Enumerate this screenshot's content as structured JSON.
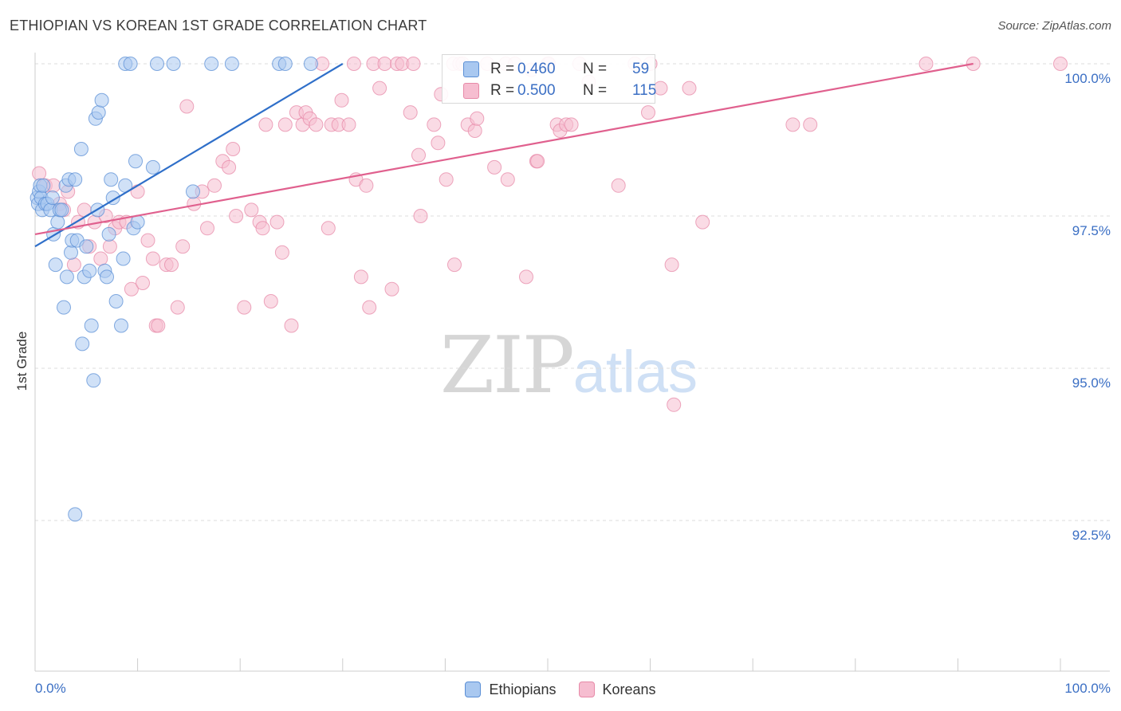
{
  "title": "ETHIOPIAN VS KOREAN 1ST GRADE CORRELATION CHART",
  "source": "Source: ZipAtlas.com",
  "watermark": {
    "part1": "ZIP",
    "part2": "atlas"
  },
  "colors": {
    "blue_fill": "#a9c8f0",
    "blue_stroke": "#5b8fd6",
    "blue_line": "#2f6fc9",
    "pink_fill": "#f6bdd0",
    "pink_stroke": "#e78aa8",
    "pink_line": "#e0608e",
    "axis_text": "#3b6fc4",
    "grid": "#dcdcdc"
  },
  "stats": [
    {
      "r_label": "R =",
      "r_value": "0.460",
      "n_label": "N =",
      "n_value": "59"
    },
    {
      "r_label": "R =",
      "r_value": "0.500",
      "n_label": "N =",
      "n_value": "115"
    }
  ],
  "legend": [
    "Ethiopians",
    "Koreans"
  ],
  "chart_data": {
    "type": "scatter",
    "title": "ETHIOPIAN VS KOREAN 1ST GRADE CORRELATION CHART",
    "xlabel": "",
    "ylabel": "1st Grade",
    "xlim": [
      0,
      100
    ],
    "ylim": [
      90.0,
      100.4
    ],
    "x_tick_labels": [
      "0.0%",
      "100.0%"
    ],
    "y_ticks": [
      92.5,
      95.0,
      97.5,
      100.0
    ],
    "y_tick_labels": [
      "92.5%",
      "95.0%",
      "97.5%",
      "100.0%"
    ],
    "grid": true,
    "series": [
      {
        "name": "Ethiopians",
        "r": 0.46,
        "n": 59,
        "trend": {
          "x": [
            0,
            30
          ],
          "y": [
            97.0,
            100.0
          ]
        },
        "points": [
          [
            0.2,
            97.8
          ],
          [
            0.3,
            97.7
          ],
          [
            0.4,
            97.9
          ],
          [
            0.5,
            98.0
          ],
          [
            0.6,
            97.8
          ],
          [
            0.7,
            97.6
          ],
          [
            0.8,
            98.0
          ],
          [
            1.0,
            97.7
          ],
          [
            1.2,
            97.7
          ],
          [
            1.5,
            97.6
          ],
          [
            1.7,
            97.8
          ],
          [
            1.8,
            97.2
          ],
          [
            2.0,
            96.7
          ],
          [
            2.2,
            97.4
          ],
          [
            2.4,
            97.6
          ],
          [
            2.6,
            97.6
          ],
          [
            2.8,
            96.0
          ],
          [
            3.0,
            98.0
          ],
          [
            3.1,
            96.5
          ],
          [
            3.3,
            98.1
          ],
          [
            3.5,
            96.9
          ],
          [
            3.6,
            97.1
          ],
          [
            3.9,
            98.1
          ],
          [
            4.1,
            97.1
          ],
          [
            4.5,
            98.6
          ],
          [
            4.6,
            95.4
          ],
          [
            4.8,
            96.5
          ],
          [
            5.0,
            97.0
          ],
          [
            5.3,
            96.6
          ],
          [
            5.5,
            95.7
          ],
          [
            5.7,
            94.8
          ],
          [
            5.9,
            99.1
          ],
          [
            6.1,
            97.6
          ],
          [
            6.2,
            99.2
          ],
          [
            6.5,
            99.4
          ],
          [
            6.8,
            96.6
          ],
          [
            7.0,
            96.5
          ],
          [
            7.2,
            97.2
          ],
          [
            7.4,
            98.1
          ],
          [
            7.6,
            97.8
          ],
          [
            7.9,
            96.1
          ],
          [
            8.4,
            95.7
          ],
          [
            8.6,
            96.8
          ],
          [
            8.8,
            98.0
          ],
          [
            8.8,
            100.0
          ],
          [
            9.3,
            100.0
          ],
          [
            9.6,
            97.3
          ],
          [
            9.8,
            98.4
          ],
          [
            10.0,
            97.4
          ],
          [
            11.5,
            98.3
          ],
          [
            11.9,
            100.0
          ],
          [
            13.5,
            100.0
          ],
          [
            15.4,
            97.9
          ],
          [
            17.2,
            100.0
          ],
          [
            19.2,
            100.0
          ],
          [
            23.8,
            100.0
          ],
          [
            24.4,
            100.0
          ],
          [
            26.9,
            100.0
          ],
          [
            3.9,
            92.6
          ]
        ]
      },
      {
        "name": "Koreans",
        "r": 0.5,
        "n": 115,
        "trend": {
          "x": [
            0,
            91.5
          ],
          "y": [
            97.2,
            100.0
          ]
        },
        "points": [
          [
            0.4,
            98.2
          ],
          [
            1.0,
            98.0
          ],
          [
            1.8,
            98.0
          ],
          [
            2.4,
            97.7
          ],
          [
            2.8,
            97.6
          ],
          [
            3.2,
            97.9
          ],
          [
            3.8,
            96.7
          ],
          [
            4.2,
            97.4
          ],
          [
            4.8,
            97.6
          ],
          [
            5.3,
            97.0
          ],
          [
            5.8,
            97.4
          ],
          [
            6.4,
            96.8
          ],
          [
            6.9,
            97.5
          ],
          [
            7.3,
            97.0
          ],
          [
            7.8,
            97.3
          ],
          [
            8.2,
            97.4
          ],
          [
            8.9,
            97.4
          ],
          [
            9.4,
            96.3
          ],
          [
            10.0,
            97.9
          ],
          [
            10.5,
            96.4
          ],
          [
            11.0,
            97.1
          ],
          [
            11.5,
            96.8
          ],
          [
            11.8,
            95.7
          ],
          [
            12.0,
            95.7
          ],
          [
            12.8,
            96.7
          ],
          [
            13.3,
            96.7
          ],
          [
            13.9,
            96.0
          ],
          [
            14.4,
            97.0
          ],
          [
            14.8,
            99.3
          ],
          [
            15.5,
            97.7
          ],
          [
            16.3,
            97.9
          ],
          [
            16.8,
            97.3
          ],
          [
            17.5,
            98.0
          ],
          [
            18.3,
            98.4
          ],
          [
            18.9,
            98.3
          ],
          [
            19.3,
            98.6
          ],
          [
            19.6,
            97.5
          ],
          [
            20.4,
            96.0
          ],
          [
            21.1,
            97.6
          ],
          [
            21.9,
            97.4
          ],
          [
            22.2,
            97.3
          ],
          [
            22.5,
            99.0
          ],
          [
            23.0,
            96.1
          ],
          [
            23.6,
            97.4
          ],
          [
            24.1,
            96.9
          ],
          [
            24.4,
            99.0
          ],
          [
            25.0,
            95.7
          ],
          [
            25.5,
            99.2
          ],
          [
            26.1,
            99.0
          ],
          [
            26.4,
            99.2
          ],
          [
            26.8,
            99.1
          ],
          [
            27.4,
            99.0
          ],
          [
            28.0,
            100.0
          ],
          [
            28.6,
            97.3
          ],
          [
            28.9,
            99.0
          ],
          [
            29.6,
            99.0
          ],
          [
            29.9,
            99.4
          ],
          [
            30.6,
            99.0
          ],
          [
            31.1,
            100.0
          ],
          [
            31.3,
            98.1
          ],
          [
            31.8,
            96.5
          ],
          [
            32.3,
            98.0
          ],
          [
            32.6,
            96.0
          ],
          [
            33.0,
            100.0
          ],
          [
            33.6,
            99.6
          ],
          [
            34.1,
            100.0
          ],
          [
            34.8,
            96.3
          ],
          [
            35.3,
            100.0
          ],
          [
            35.8,
            100.0
          ],
          [
            36.6,
            99.2
          ],
          [
            36.9,
            100.0
          ],
          [
            37.4,
            98.5
          ],
          [
            37.6,
            97.5
          ],
          [
            38.9,
            99.0
          ],
          [
            39.3,
            98.7
          ],
          [
            39.6,
            99.5
          ],
          [
            40.1,
            98.1
          ],
          [
            40.8,
            100.0
          ],
          [
            40.9,
            96.7
          ],
          [
            41.4,
            100.0
          ],
          [
            41.7,
            100.0
          ],
          [
            42.2,
            99.0
          ],
          [
            42.9,
            98.9
          ],
          [
            43.1,
            99.1
          ],
          [
            44.1,
            100.0
          ],
          [
            44.8,
            98.3
          ],
          [
            45.9,
            100.0
          ],
          [
            46.1,
            98.1
          ],
          [
            46.8,
            100.0
          ],
          [
            47.9,
            96.5
          ],
          [
            48.4,
            99.9
          ],
          [
            48.9,
            98.4
          ],
          [
            49.0,
            98.4
          ],
          [
            50.0,
            100.0
          ],
          [
            50.1,
            100.0
          ],
          [
            50.9,
            99.0
          ],
          [
            51.2,
            98.9
          ],
          [
            51.8,
            99.0
          ],
          [
            52.3,
            99.0
          ],
          [
            53.1,
            100.0
          ],
          [
            54.0,
            99.7
          ],
          [
            56.9,
            98.0
          ],
          [
            58.5,
            100.0
          ],
          [
            59.8,
            99.2
          ],
          [
            60.0,
            100.0
          ],
          [
            61.0,
            99.6
          ],
          [
            62.1,
            96.7
          ],
          [
            62.3,
            94.4
          ],
          [
            63.8,
            99.6
          ],
          [
            65.1,
            97.4
          ],
          [
            73.9,
            99.0
          ],
          [
            75.6,
            99.0
          ],
          [
            86.9,
            100.0
          ],
          [
            91.5,
            100.0
          ],
          [
            100.0,
            100.0
          ]
        ]
      }
    ]
  }
}
